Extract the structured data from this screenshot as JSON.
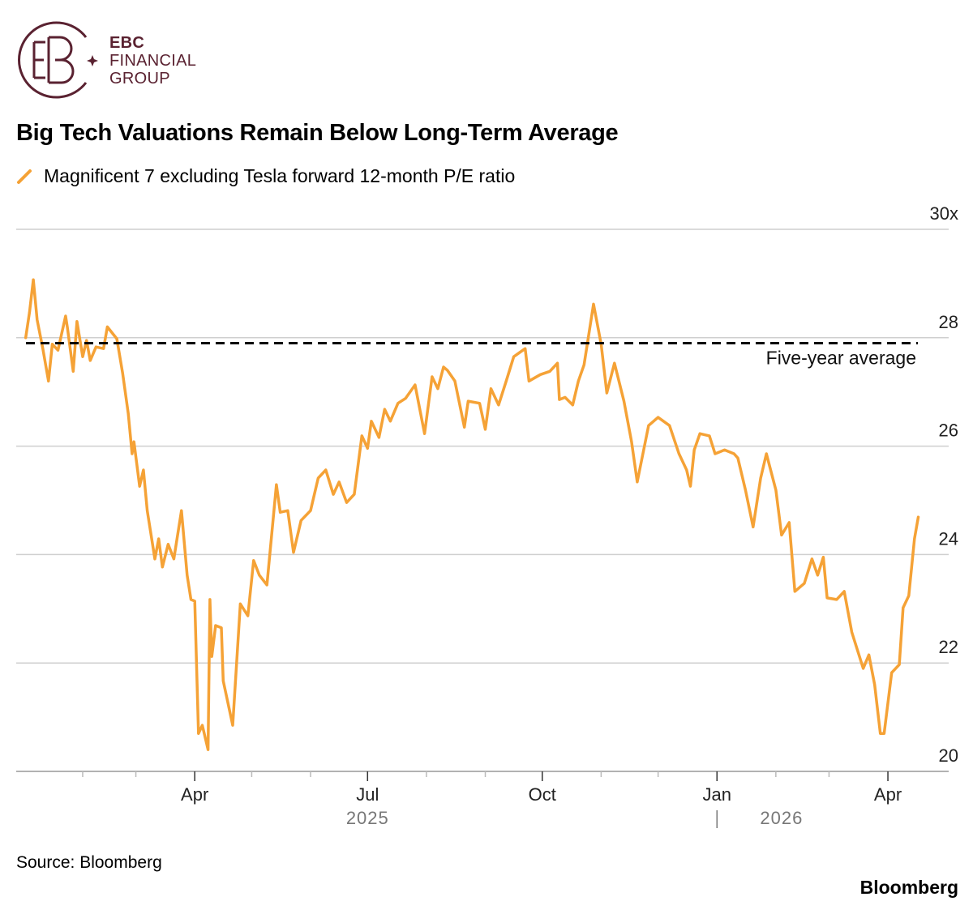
{
  "logo": {
    "line1": "EBC",
    "line2": "FINANCIAL",
    "line3": "GROUP",
    "color": "#5a2231"
  },
  "title": "Big Tech Valuations Remain Below Long-Term Average",
  "source": "Source: Bloomberg",
  "brand": "Bloomberg",
  "chart_data": {
    "type": "line",
    "title": "Big Tech Valuations Remain Below Long-Term Average",
    "grid": true,
    "ylim": [
      20,
      30
    ],
    "xlim": [
      "2024-12-28",
      "2026-05-03"
    ],
    "yticks": [
      {
        "value": 30,
        "label": "30x"
      },
      {
        "value": 28,
        "label": "28"
      },
      {
        "value": 26,
        "label": "26"
      },
      {
        "value": 24,
        "label": "24"
      },
      {
        "value": 22,
        "label": "22"
      },
      {
        "value": 20,
        "label": "20"
      }
    ],
    "xticks": [
      {
        "date": "2025-04-01",
        "label": "Apr"
      },
      {
        "date": "2025-07-01",
        "label": "Jul"
      },
      {
        "date": "2025-10-01",
        "label": "Oct"
      },
      {
        "date": "2026-01-01",
        "label": "Jan"
      },
      {
        "date": "2026-04-01",
        "label": "Apr"
      }
    ],
    "minor_ticks": [
      "2025-02-01",
      "2025-03-01",
      "2025-05-01",
      "2025-06-01",
      "2025-08-01",
      "2025-09-01",
      "2025-11-01",
      "2025-12-01",
      "2026-02-01",
      "2026-03-01"
    ],
    "year_labels": [
      {
        "date": "2025-07-01",
        "label": "2025"
      },
      {
        "date": "2026-02-04",
        "label": "2026"
      }
    ],
    "year_divider": "2026-01-01",
    "reference_line": {
      "value": 27.9,
      "label": "Five-year average",
      "color": "#000000"
    },
    "series": [
      {
        "name": "Magnificent 7 excluding Tesla forward 12-month P/E ratio",
        "color": "#f5a236",
        "points": [
          [
            "2025-01-02",
            28.0
          ],
          [
            "2025-01-04",
            28.47
          ],
          [
            "2025-01-06",
            29.07
          ],
          [
            "2025-01-08",
            28.33
          ],
          [
            "2025-01-11",
            27.8
          ],
          [
            "2025-01-14",
            27.2
          ],
          [
            "2025-01-16",
            27.88
          ],
          [
            "2025-01-19",
            27.77
          ],
          [
            "2025-01-23",
            28.4
          ],
          [
            "2025-01-24",
            28.18
          ],
          [
            "2025-01-27",
            27.38
          ],
          [
            "2025-01-29",
            28.3
          ],
          [
            "2025-02-01",
            27.65
          ],
          [
            "2025-02-03",
            27.95
          ],
          [
            "2025-02-05",
            27.58
          ],
          [
            "2025-02-08",
            27.83
          ],
          [
            "2025-02-12",
            27.8
          ],
          [
            "2025-02-14",
            28.2
          ],
          [
            "2025-02-19",
            27.98
          ],
          [
            "2025-02-22",
            27.35
          ],
          [
            "2025-02-25",
            26.6
          ],
          [
            "2025-02-27",
            25.86
          ],
          [
            "2025-02-28",
            26.08
          ],
          [
            "2025-03-03",
            25.26
          ],
          [
            "2025-03-05",
            25.56
          ],
          [
            "2025-03-07",
            24.81
          ],
          [
            "2025-03-11",
            23.92
          ],
          [
            "2025-03-13",
            24.29
          ],
          [
            "2025-03-15",
            23.77
          ],
          [
            "2025-03-18",
            24.19
          ],
          [
            "2025-03-21",
            23.92
          ],
          [
            "2025-03-25",
            24.81
          ],
          [
            "2025-03-28",
            23.62
          ],
          [
            "2025-03-30",
            23.17
          ],
          [
            "2025-04-01",
            23.14
          ],
          [
            "2025-04-03",
            20.7
          ],
          [
            "2025-04-05",
            20.85
          ],
          [
            "2025-04-08",
            20.4
          ],
          [
            "2025-04-09",
            23.17
          ],
          [
            "2025-04-10",
            22.12
          ],
          [
            "2025-04-12",
            22.69
          ],
          [
            "2025-04-15",
            22.65
          ],
          [
            "2025-04-16",
            21.67
          ],
          [
            "2025-04-21",
            20.85
          ],
          [
            "2025-04-25",
            23.09
          ],
          [
            "2025-04-29",
            22.87
          ],
          [
            "2025-05-02",
            23.89
          ],
          [
            "2025-05-05",
            23.62
          ],
          [
            "2025-05-09",
            23.44
          ],
          [
            "2025-05-14",
            25.29
          ],
          [
            "2025-05-16",
            24.78
          ],
          [
            "2025-05-20",
            24.81
          ],
          [
            "2025-05-23",
            24.04
          ],
          [
            "2025-05-27",
            24.63
          ],
          [
            "2025-06-01",
            24.81
          ],
          [
            "2025-06-05",
            25.41
          ],
          [
            "2025-06-09",
            25.56
          ],
          [
            "2025-06-13",
            25.11
          ],
          [
            "2025-06-16",
            25.34
          ],
          [
            "2025-06-20",
            24.96
          ],
          [
            "2025-06-24",
            25.11
          ],
          [
            "2025-06-28",
            26.19
          ],
          [
            "2025-07-01",
            25.96
          ],
          [
            "2025-07-03",
            26.46
          ],
          [
            "2025-07-07",
            26.16
          ],
          [
            "2025-07-10",
            26.68
          ],
          [
            "2025-07-13",
            26.46
          ],
          [
            "2025-07-17",
            26.79
          ],
          [
            "2025-07-21",
            26.88
          ],
          [
            "2025-07-26",
            27.13
          ],
          [
            "2025-07-31",
            26.23
          ],
          [
            "2025-08-04",
            27.28
          ],
          [
            "2025-08-07",
            27.06
          ],
          [
            "2025-08-10",
            27.46
          ],
          [
            "2025-08-12",
            27.4
          ],
          [
            "2025-08-16",
            27.2
          ],
          [
            "2025-08-21",
            26.35
          ],
          [
            "2025-08-23",
            26.83
          ],
          [
            "2025-08-29",
            26.79
          ],
          [
            "2025-09-01",
            26.31
          ],
          [
            "2025-09-04",
            27.06
          ],
          [
            "2025-09-08",
            26.76
          ],
          [
            "2025-09-12",
            27.2
          ],
          [
            "2025-09-16",
            27.65
          ],
          [
            "2025-09-22",
            27.8
          ],
          [
            "2025-09-24",
            27.2
          ],
          [
            "2025-09-30",
            27.32
          ],
          [
            "2025-10-05",
            27.38
          ],
          [
            "2025-10-09",
            27.53
          ],
          [
            "2025-10-10",
            26.86
          ],
          [
            "2025-10-13",
            26.9
          ],
          [
            "2025-10-17",
            26.76
          ],
          [
            "2025-10-20",
            27.2
          ],
          [
            "2025-10-23",
            27.5
          ],
          [
            "2025-10-28",
            28.62
          ],
          [
            "2025-11-01",
            27.88
          ],
          [
            "2025-11-04",
            26.98
          ],
          [
            "2025-11-08",
            27.53
          ],
          [
            "2025-11-13",
            26.83
          ],
          [
            "2025-11-17",
            26.08
          ],
          [
            "2025-11-20",
            25.34
          ],
          [
            "2025-11-26",
            26.38
          ],
          [
            "2025-12-01",
            26.53
          ],
          [
            "2025-12-07",
            26.38
          ],
          [
            "2025-12-12",
            25.86
          ],
          [
            "2025-12-16",
            25.56
          ],
          [
            "2025-12-18",
            25.26
          ],
          [
            "2025-12-20",
            25.93
          ],
          [
            "2025-12-23",
            26.23
          ],
          [
            "2025-12-28",
            26.19
          ],
          [
            "2025-12-31",
            25.86
          ],
          [
            "2026-01-05",
            25.93
          ],
          [
            "2026-01-10",
            25.86
          ],
          [
            "2026-01-12",
            25.78
          ],
          [
            "2026-01-16",
            25.19
          ],
          [
            "2026-01-20",
            24.51
          ],
          [
            "2026-01-24",
            25.41
          ],
          [
            "2026-01-27",
            25.86
          ],
          [
            "2026-02-01",
            25.19
          ],
          [
            "2026-02-04",
            24.36
          ],
          [
            "2026-02-08",
            24.59
          ],
          [
            "2026-02-11",
            23.32
          ],
          [
            "2026-02-16",
            23.47
          ],
          [
            "2026-02-20",
            23.92
          ],
          [
            "2026-02-23",
            23.62
          ],
          [
            "2026-02-26",
            23.95
          ],
          [
            "2026-02-28",
            23.2
          ],
          [
            "2026-03-05",
            23.17
          ],
          [
            "2026-03-09",
            23.32
          ],
          [
            "2026-03-13",
            22.57
          ],
          [
            "2026-03-19",
            21.9
          ],
          [
            "2026-03-22",
            22.15
          ],
          [
            "2026-03-25",
            21.6
          ],
          [
            "2026-03-28",
            20.7
          ],
          [
            "2026-03-30",
            20.7
          ],
          [
            "2026-04-03",
            21.82
          ],
          [
            "2026-04-07",
            21.97
          ],
          [
            "2026-04-09",
            23.02
          ],
          [
            "2026-04-12",
            23.24
          ],
          [
            "2026-04-15",
            24.29
          ],
          [
            "2026-04-17",
            24.69
          ]
        ]
      }
    ]
  }
}
